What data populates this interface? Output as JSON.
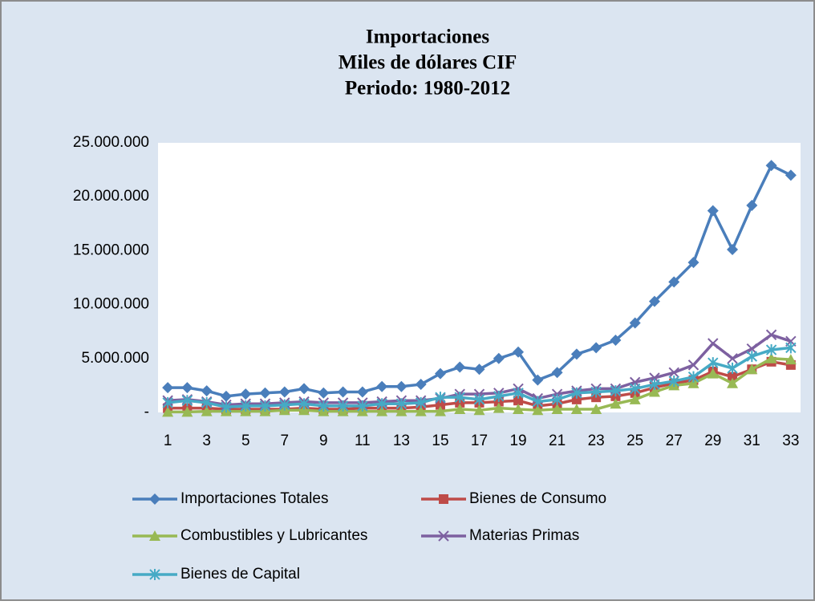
{
  "chart_data": {
    "type": "line",
    "title": [
      "Importaciones",
      "Miles de dólares CIF",
      "Periodo: 1980-2012"
    ],
    "categories": [
      1,
      null,
      3,
      null,
      5,
      null,
      7,
      null,
      9,
      null,
      11,
      null,
      13,
      null,
      15,
      null,
      17,
      null,
      19,
      null,
      21,
      null,
      23,
      null,
      25,
      null,
      27,
      null,
      29,
      null,
      31,
      null,
      33
    ],
    "ylim": [
      0,
      25000000
    ],
    "yticks": [
      {
        "value": 0,
        "label": "-"
      },
      {
        "value": 5000000,
        "label": "5.000.000"
      },
      {
        "value": 10000000,
        "label": "10.000.000"
      },
      {
        "value": 15000000,
        "label": "15.000.000"
      },
      {
        "value": 20000000,
        "label": "20.000.000"
      },
      {
        "value": 25000000,
        "label": "25.000.000"
      }
    ],
    "grid": false,
    "legend": "bottom",
    "series": [
      {
        "name": "Importaciones Totales",
        "color": "#4a7ebb",
        "marker": "diamond",
        "values": [
          2300000,
          2300000,
          2000000,
          1500000,
          1700000,
          1800000,
          1900000,
          2200000,
          1800000,
          1900000,
          1900000,
          2400000,
          2400000,
          2600000,
          3600000,
          4200000,
          4000000,
          5000000,
          5600000,
          3000000,
          3700000,
          5400000,
          6000000,
          6700000,
          8300000,
          10300000,
          12100000,
          13900000,
          18700000,
          15100000,
          19200000,
          22900000,
          22000000
        ]
      },
      {
        "name": "Bienes de Consumo",
        "color": "#be4b48",
        "marker": "square",
        "values": [
          400000,
          400000,
          400000,
          300000,
          300000,
          300000,
          300000,
          400000,
          300000,
          300000,
          400000,
          400000,
          400000,
          500000,
          700000,
          900000,
          900000,
          1000000,
          1100000,
          600000,
          800000,
          1200000,
          1400000,
          1500000,
          1800000,
          2300000,
          2700000,
          3000000,
          3800000,
          3300000,
          4000000,
          4700000,
          4400000
        ]
      },
      {
        "name": "Combustibles y Lubricantes",
        "color": "#98b954",
        "marker": "triangle",
        "values": [
          50000,
          50000,
          100000,
          100000,
          100000,
          100000,
          200000,
          200000,
          100000,
          100000,
          100000,
          100000,
          100000,
          100000,
          100000,
          300000,
          200000,
          400000,
          300000,
          200000,
          300000,
          300000,
          300000,
          800000,
          1200000,
          1900000,
          2500000,
          2700000,
          3600000,
          2700000,
          4000000,
          5000000,
          4900000
        ]
      },
      {
        "name": "Materias Primas",
        "color": "#7d60a0",
        "marker": "x",
        "values": [
          1100000,
          1200000,
          1000000,
          700000,
          800000,
          800000,
          900000,
          1000000,
          900000,
          900000,
          900000,
          1000000,
          1100000,
          1100000,
          1300000,
          1700000,
          1700000,
          1800000,
          2200000,
          1300000,
          1700000,
          2000000,
          2200000,
          2200000,
          2800000,
          3200000,
          3700000,
          4400000,
          6400000,
          5000000,
          5900000,
          7200000,
          6600000
        ]
      },
      {
        "name": "Bienes de Capital",
        "color": "#46aac5",
        "marker": "star",
        "values": [
          900000,
          1100000,
          900000,
          500000,
          600000,
          600000,
          700000,
          800000,
          600000,
          600000,
          600000,
          800000,
          800000,
          900000,
          1400000,
          1400000,
          1200000,
          1500000,
          1800000,
          1000000,
          1200000,
          1800000,
          1900000,
          2000000,
          2200000,
          2600000,
          2900000,
          3300000,
          4600000,
          4100000,
          5200000,
          5800000,
          6000000
        ]
      }
    ]
  }
}
